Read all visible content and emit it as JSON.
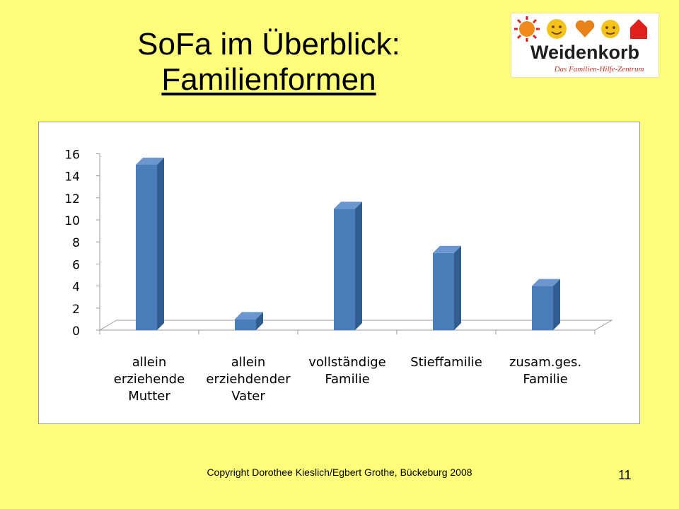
{
  "slide": {
    "title_line1": "SoFa im Überblick:",
    "title_line2": "Familienformen",
    "logo_text": "Weidenkorb",
    "logo_tagline": "Das Familien-Hilfe-Zentrum",
    "copyright": "Copyright Dorothee Kieslich/Egbert Grothe, Bückeburg 2008",
    "page_number": "11",
    "background_color": "#fefe7a"
  },
  "chart_data": {
    "type": "bar",
    "title": "",
    "xlabel": "",
    "ylabel": "",
    "categories": [
      [
        "allein",
        "erziehende",
        "Mutter"
      ],
      [
        "allein",
        "erziehdender",
        "Vater"
      ],
      [
        "vollständige",
        "Familie"
      ],
      [
        "Stieffamilie"
      ],
      [
        "zusam.ges.",
        "Familie"
      ]
    ],
    "values": [
      15,
      1,
      11,
      7,
      4
    ],
    "ylim": [
      0,
      16
    ],
    "yticks": [
      "0",
      "2",
      "4",
      "6",
      "8",
      "10",
      "12",
      "14",
      "16"
    ],
    "grid": false,
    "legend": "none",
    "bar_color": "#4a7ebb",
    "bar_side_color": "#2f5d8f",
    "bar_top_color": "#6b96cf"
  }
}
